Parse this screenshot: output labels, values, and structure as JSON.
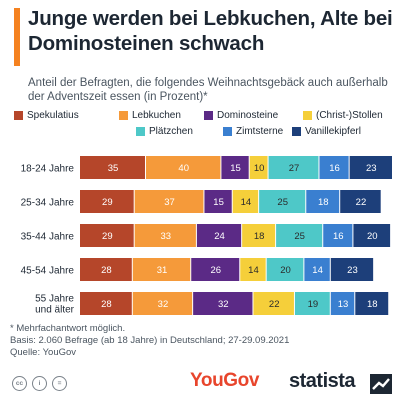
{
  "header": {
    "title": "Junge werden bei Lebkuchen, Alte bei Dominosteinen schwach",
    "subtitle": "Anteil der Befragten, die folgendes Weihnachtsgebäck auch außerhalb der Adventszeit essen (in Prozent)*"
  },
  "colors": {
    "accent": "#f58220",
    "value_text_light": "#ffffff",
    "value_text_dark": "#2b2b2b"
  },
  "chart_data": {
    "type": "bar",
    "orientation": "horizontal",
    "stacked": true,
    "categories": [
      "18-24 Jahre",
      "25-34 Jahre",
      "35-44 Jahre",
      "45-54 Jahre",
      "55 Jahre und älter"
    ],
    "series": [
      {
        "name": "Spekulatius",
        "color": "#b5462a",
        "values": [
          35,
          29,
          29,
          28,
          28
        ]
      },
      {
        "name": "Lebkuchen",
        "color": "#f59a3a",
        "values": [
          40,
          37,
          33,
          31,
          32
        ]
      },
      {
        "name": "Dominosteine",
        "color": "#5b2a86",
        "values": [
          15,
          15,
          24,
          26,
          32
        ]
      },
      {
        "name": "(Christ-)Stollen",
        "color": "#f5cf3a",
        "values": [
          10,
          14,
          18,
          14,
          22
        ]
      },
      {
        "name": "Plätzchen",
        "color": "#4ec8c8",
        "values": [
          27,
          25,
          25,
          20,
          19
        ]
      },
      {
        "name": "Zimtsterne",
        "color": "#3a7fd0",
        "values": [
          16,
          18,
          16,
          14,
          13
        ]
      },
      {
        "name": "Vanillekipferl",
        "color": "#1d3f7a",
        "values": [
          23,
          22,
          20,
          23,
          18
        ]
      }
    ],
    "legend": "top",
    "grid": false
  },
  "footnotes": {
    "note": "* Mehrfachantwort möglich.",
    "basis": "Basis: 2.060 Befrage (ab 18 Jahre) in Deutschland; 27-29.09.2021",
    "source": "Quelle: YouGov"
  },
  "footer": {
    "license_icons": [
      "cc-icon",
      "by-icon",
      "nd-icon"
    ],
    "license_glyphs": [
      "cc",
      "i",
      "="
    ],
    "yougov_logo": "YouGov",
    "statista_logo": "statista"
  }
}
